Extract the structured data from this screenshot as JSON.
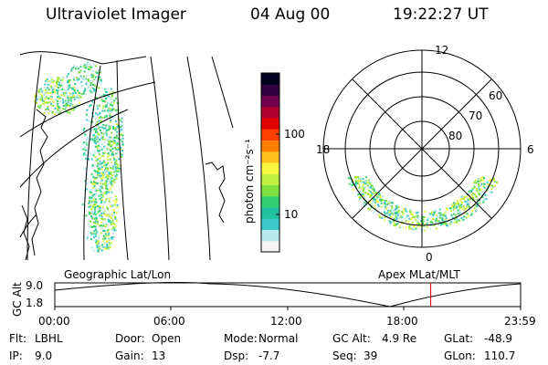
{
  "header": {
    "instrument": "Ultraviolet Imager",
    "date": "04 Aug 00",
    "time": "19:22:27 UT"
  },
  "colorbar": {
    "unit_label": "photon cm⁻²s⁻¹",
    "tick_100": "100",
    "tick_10": "10",
    "colors": [
      "#f4f4f4",
      "#b8e8f0",
      "#3cc8c8",
      "#20c0a0",
      "#30d070",
      "#80e040",
      "#c0f040",
      "#f8f840",
      "#ffc020",
      "#ff8000",
      "#ff4000",
      "#e00000",
      "#b00030",
      "#700050",
      "#300040",
      "#000020"
    ]
  },
  "polar": {
    "mlt_12": "12",
    "mlt_18": "18",
    "mlt_6": "6",
    "mlt_0": "0",
    "lat_60": "60",
    "lat_70": "70",
    "lat_80": "80"
  },
  "map_labels": {
    "left": "Geographic Lat/Lon",
    "right": "Apex MLat/MLT"
  },
  "altitude_plot": {
    "ylabel": "GC Alt",
    "y_top": "9.0",
    "y_bottom": "1.8",
    "x_ticks": [
      "00:00",
      "06:00",
      "12:00",
      "18:00",
      "23:59"
    ],
    "marker_time_hours": 19.37
  },
  "status": {
    "filter_label": "Flt:",
    "filter_value": "LBHL",
    "ip_label": "IP:",
    "ip_value": "9.0",
    "door_label": "Door:",
    "door_value": "Open",
    "gain_label": "Gain:",
    "gain_value": "13",
    "mode_label": "Mode:",
    "mode_value": "Normal",
    "dsp_label": "Dsp:",
    "dsp_value": "-7.7",
    "gcalt_label": "GC Alt:",
    "gcalt_value": "4.9 Re",
    "seq_label": "Seq:",
    "seq_value": "39",
    "glat_label": "GLat:",
    "glat_value": "-48.9",
    "glon_label": "GLon:",
    "glon_value": "110.7"
  }
}
